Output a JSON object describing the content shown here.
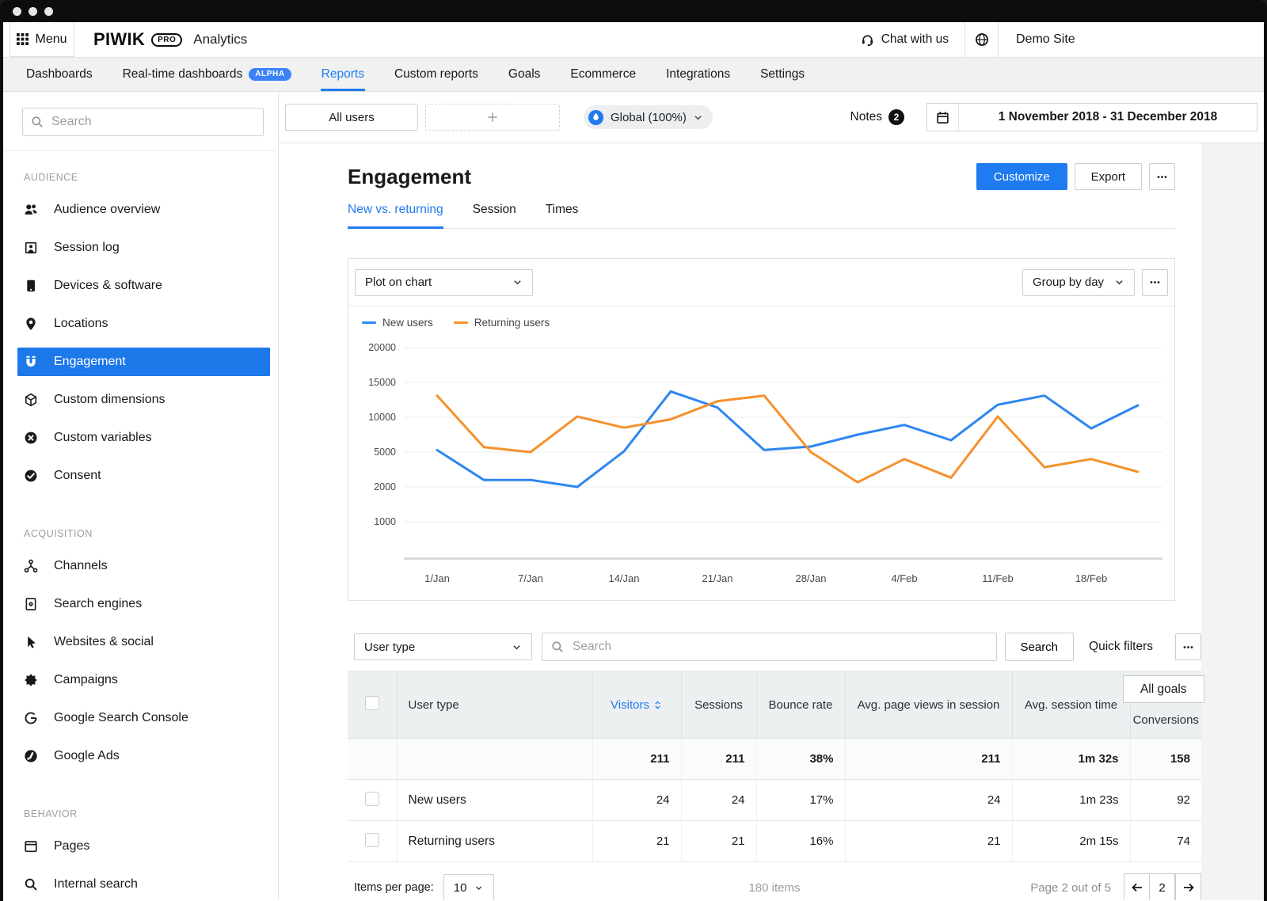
{
  "accent": "#1f7bef",
  "header": {
    "menu_label": "Menu",
    "brand": {
      "piwik": "PIWIK",
      "pro": "PRO",
      "product": "Analytics"
    },
    "chat_label": "Chat with us",
    "site_name": "Demo Site"
  },
  "nav": {
    "items": [
      {
        "label": "Dashboards"
      },
      {
        "label": "Real-time dashboards",
        "badge": "ALPHA"
      },
      {
        "label": "Reports",
        "active": true
      },
      {
        "label": "Custom reports"
      },
      {
        "label": "Goals"
      },
      {
        "label": "Ecommerce"
      },
      {
        "label": "Integrations"
      },
      {
        "label": "Settings"
      }
    ]
  },
  "sidebar": {
    "search_placeholder": "Search",
    "audience": {
      "title": "AUDIENCE",
      "items": [
        {
          "icon": "audience-overview-icon",
          "label": "Audience overview"
        },
        {
          "icon": "session-log-icon",
          "label": "Session log"
        },
        {
          "icon": "devices-software-icon",
          "label": "Devices & software"
        },
        {
          "icon": "locations-icon",
          "label": "Locations"
        },
        {
          "icon": "engagement-icon",
          "label": "Engagement",
          "active": true
        },
        {
          "icon": "custom-dimensions-icon",
          "label": "Custom dimensions"
        },
        {
          "icon": "custom-variables-icon",
          "label": "Custom variables"
        },
        {
          "icon": "consent-icon",
          "label": "Consent"
        }
      ]
    },
    "acquisition": {
      "title": "ACQUISITION",
      "items": [
        {
          "icon": "channels-icon",
          "label": "Channels"
        },
        {
          "icon": "search-engines-icon",
          "label": "Search engines"
        },
        {
          "icon": "websites-social-icon",
          "label": "Websites & social"
        },
        {
          "icon": "campaigns-icon",
          "label": "Campaigns"
        },
        {
          "icon": "google-search-console-icon",
          "label": "Google Search Console"
        },
        {
          "icon": "google-ads-icon",
          "label": "Google Ads"
        }
      ]
    },
    "behavior": {
      "title": "BEHAVIOR",
      "items": [
        {
          "icon": "pages-icon",
          "label": "Pages"
        },
        {
          "icon": "internal-search-icon",
          "label": "Internal search"
        },
        {
          "icon": "clipped-icon",
          "label": ""
        }
      ]
    }
  },
  "toolbar": {
    "segment_all_users": "All users",
    "sampling_label": "Global (100%)",
    "notes_label": "Notes",
    "notes_count": "2",
    "date_range": "1 November 2018 - 31 December 2018"
  },
  "report": {
    "title": "Engagement",
    "customize_label": "Customize",
    "export_label": "Export",
    "tabs": [
      {
        "label": "New vs. returning",
        "active": true
      },
      {
        "label": "Session"
      },
      {
        "label": "Times"
      }
    ]
  },
  "chart_card": {
    "plot_select": "Plot on chart",
    "group_select": "Group by day",
    "legend": [
      {
        "label": "New users",
        "color": "#2e86f0"
      },
      {
        "label": "Returning users",
        "color": "#f5912d"
      }
    ]
  },
  "chart_data": {
    "type": "line",
    "title": "",
    "xlabel": "",
    "ylabel": "",
    "grid": true,
    "legend_position": "top-left",
    "y_ticks": [
      20000,
      15000,
      10000,
      5000,
      2000,
      1000
    ],
    "y_axis_note": "tick marks equally spaced (non-linear scale)",
    "x_tick_labels": [
      "1/Jan",
      "7/Jan",
      "14/Jan",
      "21/Jan",
      "28/Jan",
      "4/Feb",
      "11/Feb",
      "18/Feb"
    ],
    "series": [
      {
        "name": "New users",
        "color": "#2e86f0",
        "values": [
          5300,
          2600,
          2600,
          2000,
          5100,
          13700,
          11400,
          5300,
          5800,
          7500,
          8900,
          6700,
          11800,
          13100,
          8400,
          11700
        ]
      },
      {
        "name": "Returning users",
        "color": "#f5912d",
        "values": [
          13100,
          5700,
          5000,
          10100,
          8500,
          9700,
          12300,
          13100,
          5000,
          2400,
          4400,
          2800,
          10100,
          3700,
          4400,
          3300
        ]
      }
    ]
  },
  "table": {
    "type_select": "User type",
    "search_placeholder": "Search",
    "search_button": "Search",
    "quick_filters": "Quick filters",
    "goals": {
      "selector_label": "All goals",
      "sub_label": "Conversions"
    },
    "columns": [
      "User type",
      "Visitors",
      "Sessions",
      "Bounce rate",
      "Avg. page views in session",
      "Avg. session time"
    ],
    "summary": {
      "visitors": "211",
      "sessions": "211",
      "bounce": "38%",
      "avg_views": "211",
      "avg_time": "1m 32s",
      "conversions": "158"
    },
    "rows": [
      {
        "label": "New users",
        "visitors": "24",
        "sessions": "24",
        "bounce": "17%",
        "avg_views": "24",
        "avg_time": "1m 23s",
        "conversions": "92"
      },
      {
        "label": "Returning users",
        "visitors": "21",
        "sessions": "21",
        "bounce": "16%",
        "avg_views": "21",
        "avg_time": "2m 15s",
        "conversions": "74"
      }
    ],
    "footer": {
      "items_per_page_label": "Items per page:",
      "per_page": "10",
      "total_items": "180 items",
      "page_status": "Page 2 out of 5",
      "page_value": "2"
    }
  }
}
